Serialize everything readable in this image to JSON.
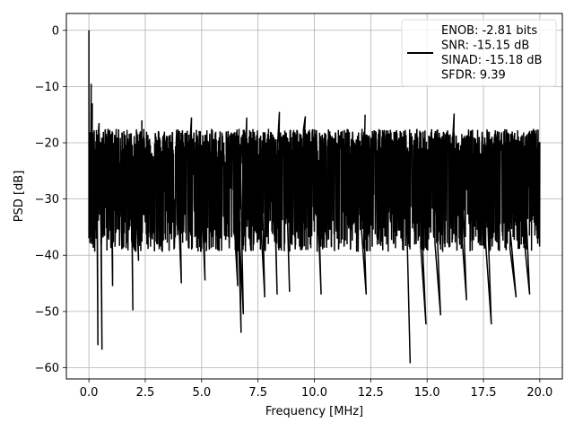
{
  "chart_data": {
    "type": "line",
    "xlabel": "Frequency [MHz]",
    "ylabel": "PSD [dB]",
    "xlim": [
      -1.0,
      21.0
    ],
    "ylim": [
      -62.0,
      3.0
    ],
    "xticks": [
      0.0,
      2.5,
      5.0,
      7.5,
      10.0,
      12.5,
      15.0,
      17.5,
      20.0
    ],
    "xtick_labels": [
      "0.0",
      "2.5",
      "5.0",
      "7.5",
      "10.0",
      "12.5",
      "15.0",
      "17.5",
      "20.0"
    ],
    "yticks": [
      0,
      -10,
      -20,
      -30,
      -40,
      -50,
      -60
    ],
    "ytick_labels": [
      "0",
      "−10",
      "−20",
      "−30",
      "−40",
      "−50",
      "−60"
    ],
    "grid": true,
    "legend_position": "upper-right",
    "line_color": "#000000",
    "series": [
      {
        "legend_lines": [
          "ENOB: -2.81 bits",
          "SNR: -15.15 dB",
          "SINAD: -15.18 dB",
          "SFDR: 9.39"
        ],
        "peaks": [
          {
            "x": 0.0,
            "y": 0.0
          },
          {
            "x": 0.1,
            "y": -9.5
          },
          {
            "x": 0.15,
            "y": -13.0
          },
          {
            "x": 0.45,
            "y": -16.5
          },
          {
            "x": 0.85,
            "y": -17.5
          },
          {
            "x": 2.35,
            "y": -16.0
          },
          {
            "x": 4.55,
            "y": -15.5
          },
          {
            "x": 7.0,
            "y": -15.5
          },
          {
            "x": 8.45,
            "y": -14.5
          },
          {
            "x": 9.6,
            "y": -15.3
          },
          {
            "x": 12.25,
            "y": -15.0
          },
          {
            "x": 16.2,
            "y": -14.8
          }
        ],
        "dips": [
          {
            "x": 0.4,
            "y": -56.0
          },
          {
            "x": 0.58,
            "y": -56.8
          },
          {
            "x": 1.05,
            "y": -41.0
          },
          {
            "x": 1.05,
            "y": -45.5
          },
          {
            "x": 1.95,
            "y": -49.8
          },
          {
            "x": 2.2,
            "y": -41.0
          },
          {
            "x": 4.1,
            "y": -45.0
          },
          {
            "x": 5.15,
            "y": -44.5
          },
          {
            "x": 6.6,
            "y": -45.5
          },
          {
            "x": 6.75,
            "y": -53.8
          },
          {
            "x": 6.85,
            "y": -50.5
          },
          {
            "x": 7.8,
            "y": -47.5
          },
          {
            "x": 8.35,
            "y": -47.0
          },
          {
            "x": 8.9,
            "y": -46.5
          },
          {
            "x": 10.3,
            "y": -47.0
          },
          {
            "x": 12.3,
            "y": -47.0
          },
          {
            "x": 14.25,
            "y": -59.2
          },
          {
            "x": 14.95,
            "y": -52.3
          },
          {
            "x": 15.6,
            "y": -50.7
          },
          {
            "x": 16.75,
            "y": -48.0
          },
          {
            "x": 17.85,
            "y": -52.3
          },
          {
            "x": 18.95,
            "y": -47.5
          },
          {
            "x": 19.55,
            "y": -47.0
          }
        ],
        "band_typical_range": [
          -37.0,
          -16.0
        ],
        "x_range": [
          0.0,
          20.0
        ]
      }
    ]
  }
}
